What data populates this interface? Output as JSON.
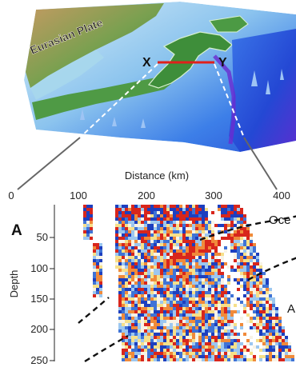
{
  "map": {
    "plate_label": "Eurasian Plate",
    "point_x": "X",
    "point_y": "Y",
    "section_line_color": "#e0201b"
  },
  "section": {
    "panel_label": "A",
    "x_axis_label": "Distance (km)",
    "x_ticks": [
      "0",
      "100",
      "200",
      "300",
      "400"
    ],
    "y_axis_label": "Depth",
    "y_ticks": [
      "50",
      "100",
      "150",
      "200",
      "250"
    ],
    "label_top_right": "Oce",
    "label_right_mid": "A"
  },
  "colors": {
    "land_low": "#3c8d3a",
    "land_high": "#b58a55",
    "shallow_sea": "#bfe3f3",
    "deep_sea": "#1f5fe0",
    "trench": "#6a2bd1",
    "anomaly_red": "#d8261c",
    "anomaly_blue": "#1d3fbf",
    "anomaly_yellow": "#f6e08a"
  }
}
